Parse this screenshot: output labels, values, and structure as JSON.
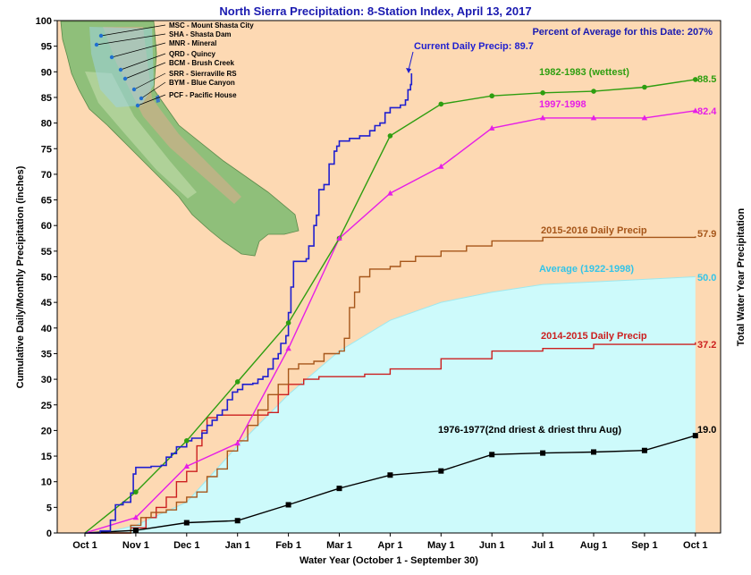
{
  "chart_data": {
    "type": "line",
    "title": "North Sierra Precipitation: 8-Station Index, April 13, 2017",
    "subtitle": "Percent of Average for this Date: 207%",
    "xlabel": "Water Year (October 1 - September 30)",
    "ylabel": "Cumulative Daily/Monthly Precipitation (inches)",
    "ylabel_right": "Total Water Year Precipitation",
    "ylim": [
      0,
      100
    ],
    "yticks": [
      0,
      5,
      10,
      15,
      20,
      25,
      30,
      35,
      40,
      45,
      50,
      55,
      60,
      65,
      70,
      75,
      80,
      85,
      90,
      95,
      100
    ],
    "x_months": [
      "Oct 1",
      "Nov 1",
      "Dec 1",
      "Jan 1",
      "Feb 1",
      "Mar 1",
      "Apr 1",
      "May 1",
      "Jun 1",
      "Jul 1",
      "Aug 1",
      "Sep 1",
      "Oct 1"
    ],
    "grid": false,
    "colors": {
      "plot_bg": "#fdd9b3",
      "average_fill": "#cdfafb",
      "current": "#1f1fd0",
      "wettest": "#2e9e10",
      "y1997": "#e61ee6",
      "y2015_16": "#a6561a",
      "average_label": "#33c4e8",
      "y2014_15": "#cc1f1f",
      "y1976_77": "#000000"
    },
    "current_label": "Current Daily Precip: 89.7",
    "current_daily": {
      "name": "Current Daily Precip",
      "points": [
        [
          0,
          0
        ],
        [
          0.3,
          0.4
        ],
        [
          0.5,
          2.5
        ],
        [
          0.6,
          5.5
        ],
        [
          0.75,
          6
        ],
        [
          0.9,
          7.8
        ],
        [
          0.95,
          11.5
        ],
        [
          1.0,
          12.8
        ],
        [
          1.3,
          13
        ],
        [
          1.5,
          13.2
        ],
        [
          1.6,
          14.8
        ],
        [
          1.7,
          15.5
        ],
        [
          1.8,
          16.8
        ],
        [
          2.0,
          18
        ],
        [
          2.1,
          18.5
        ],
        [
          2.3,
          19.5
        ],
        [
          2.4,
          21
        ],
        [
          2.5,
          22
        ],
        [
          2.6,
          23
        ],
        [
          2.7,
          24
        ],
        [
          2.8,
          26
        ],
        [
          2.9,
          27.5
        ],
        [
          3.0,
          28
        ],
        [
          3.1,
          29
        ],
        [
          3.3,
          29.2
        ],
        [
          3.4,
          30
        ],
        [
          3.5,
          30.5
        ],
        [
          3.6,
          32
        ],
        [
          3.7,
          34
        ],
        [
          3.8,
          35
        ],
        [
          3.85,
          37
        ],
        [
          3.95,
          38.5
        ],
        [
          4.0,
          43
        ],
        [
          4.05,
          48
        ],
        [
          4.1,
          53
        ],
        [
          4.35,
          53.5
        ],
        [
          4.4,
          56
        ],
        [
          4.5,
          60
        ],
        [
          4.55,
          62
        ],
        [
          4.6,
          67
        ],
        [
          4.7,
          68
        ],
        [
          4.8,
          72
        ],
        [
          4.9,
          74.5
        ],
        [
          4.95,
          75.5
        ],
        [
          5.0,
          76.5
        ],
        [
          5.2,
          77
        ],
        [
          5.4,
          77.5
        ],
        [
          5.6,
          78.5
        ],
        [
          5.7,
          79.5
        ],
        [
          5.8,
          80
        ],
        [
          5.9,
          82
        ],
        [
          6.0,
          83
        ],
        [
          6.2,
          83.5
        ],
        [
          6.3,
          84.5
        ],
        [
          6.35,
          86.5
        ],
        [
          6.4,
          87.5
        ],
        [
          6.42,
          89.7
        ]
      ],
      "final": 89.7
    },
    "series": [
      {
        "name": "1982-1983 (wettest)",
        "total": 88.5,
        "marker": "circle",
        "x": [
          0,
          1,
          2,
          3,
          4,
          5,
          6,
          7,
          8,
          9,
          10,
          11,
          12
        ],
        "values": [
          0,
          8,
          18,
          29.5,
          41,
          57.5,
          77.5,
          83.7,
          85.3,
          85.9,
          86.2,
          87,
          88.5
        ]
      },
      {
        "name": "1997-1998",
        "total": 82.4,
        "marker": "triangle",
        "x": [
          0,
          1,
          2,
          3,
          4,
          5,
          6,
          7,
          8,
          9,
          10,
          11,
          12
        ],
        "values": [
          0,
          3,
          13,
          17.5,
          36,
          57.5,
          66.3,
          71.5,
          79,
          81,
          81,
          81,
          82.4
        ]
      },
      {
        "name": "1976-1977(2nd driest & driest thru Aug)",
        "total": 19.0,
        "marker": "square",
        "x": [
          0,
          1,
          2,
          3,
          4,
          5,
          6,
          7,
          8,
          9,
          10,
          11,
          12
        ],
        "values": [
          0,
          0.5,
          2,
          2.4,
          5.5,
          8.7,
          11.3,
          12.1,
          15.3,
          15.6,
          15.8,
          16.1,
          19.0
        ]
      }
    ],
    "daily_2015_2016": {
      "name": "2015-2016 Daily Precip",
      "total": 57.9,
      "points": [
        [
          0,
          0
        ],
        [
          0.5,
          0
        ],
        [
          0.9,
          1.5
        ],
        [
          1.1,
          3
        ],
        [
          1.3,
          4
        ],
        [
          1.6,
          4.5
        ],
        [
          1.8,
          6
        ],
        [
          2.0,
          7
        ],
        [
          2.2,
          8
        ],
        [
          2.4,
          11
        ],
        [
          2.6,
          12.5
        ],
        [
          2.8,
          16
        ],
        [
          3.0,
          18
        ],
        [
          3.2,
          21
        ],
        [
          3.4,
          24
        ],
        [
          3.6,
          27
        ],
        [
          3.8,
          29
        ],
        [
          4.0,
          32
        ],
        [
          4.2,
          33
        ],
        [
          4.5,
          33.5
        ],
        [
          4.7,
          35
        ],
        [
          5.0,
          35.5
        ],
        [
          5.1,
          38
        ],
        [
          5.2,
          44
        ],
        [
          5.3,
          47
        ],
        [
          5.4,
          50
        ],
        [
          5.6,
          51.5
        ],
        [
          6.0,
          52
        ],
        [
          6.2,
          53
        ],
        [
          6.5,
          54
        ],
        [
          7.0,
          55
        ],
        [
          7.5,
          56
        ],
        [
          8.0,
          57
        ],
        [
          9.0,
          57.7
        ],
        [
          12,
          57.9
        ]
      ]
    },
    "daily_2014_2015": {
      "name": "2014-2015 Daily Precip",
      "total": 37.2,
      "points": [
        [
          0,
          0
        ],
        [
          0.6,
          0
        ],
        [
          0.9,
          1
        ],
        [
          1.2,
          3
        ],
        [
          1.4,
          5
        ],
        [
          1.6,
          7
        ],
        [
          1.8,
          10
        ],
        [
          2.0,
          12
        ],
        [
          2.2,
          17
        ],
        [
          2.3,
          20
        ],
        [
          2.4,
          22.5
        ],
        [
          2.6,
          23
        ],
        [
          3.0,
          23
        ],
        [
          3.5,
          23
        ],
        [
          3.6,
          23.5
        ],
        [
          3.8,
          27
        ],
        [
          4.0,
          29
        ],
        [
          4.3,
          30
        ],
        [
          4.6,
          30.5
        ],
        [
          5.0,
          30.5
        ],
        [
          5.5,
          31
        ],
        [
          6.0,
          32
        ],
        [
          7.0,
          34
        ],
        [
          8.0,
          35.5
        ],
        [
          9.0,
          36
        ],
        [
          10.0,
          36.8
        ],
        [
          12,
          37.2
        ]
      ]
    },
    "average": {
      "name": "Average (1922-1998)",
      "total": 50.0,
      "points": [
        [
          0,
          0
        ],
        [
          0.5,
          0.3
        ],
        [
          1,
          1.5
        ],
        [
          2,
          6
        ],
        [
          3,
          17
        ],
        [
          4,
          27
        ],
        [
          5,
          35.5
        ],
        [
          6,
          41.5
        ],
        [
          7,
          45
        ],
        [
          8,
          47
        ],
        [
          9,
          48.5
        ],
        [
          10,
          49
        ],
        [
          11,
          49.5
        ],
        [
          12,
          50
        ]
      ]
    },
    "stations": [
      "MSC - Mount Shasta City",
      "SHA - Shasta Dam",
      "MNR - Mineral",
      "QRD - Quincy",
      "BCM - Brush Creek",
      "SRR - Sierraville RS",
      "BYM - Blue Canyon",
      "PCF - Pacific House"
    ]
  }
}
